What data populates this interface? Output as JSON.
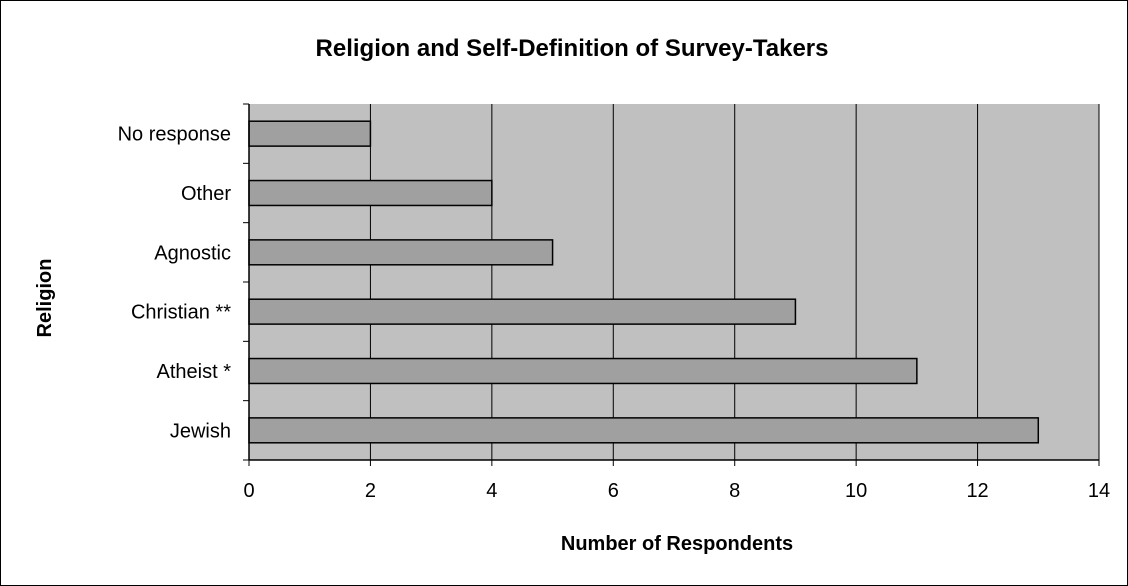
{
  "chart_data": {
    "type": "bar",
    "orientation": "horizontal",
    "title": "Religion and Self-Definition of Survey-Takers",
    "xlabel": "Number of Respondents",
    "ylabel": "Religion",
    "categories": [
      "No response",
      "Other",
      "Agnostic",
      "Christian **",
      "Atheist *",
      "Jewish"
    ],
    "values": [
      2,
      4,
      5,
      9,
      11,
      13
    ],
    "xlim": [
      0,
      14
    ],
    "xticks": [
      0,
      2,
      4,
      6,
      8,
      10,
      12,
      14
    ],
    "grid": "vertical",
    "legend": "none",
    "colors": {
      "plot_background": "#c0c0c0",
      "bar_fill": "#a0a0a0",
      "bar_stroke": "#000000",
      "gridline": "#000000"
    }
  }
}
